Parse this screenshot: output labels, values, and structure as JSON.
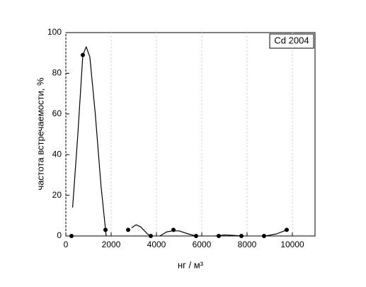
{
  "chart_data": {
    "type": "scatter",
    "annotation": "Cd 2004",
    "xlabel": "нг / м³",
    "ylabel": "частота встречаемости, %",
    "xlim": [
      0,
      11000
    ],
    "xticks": [
      0,
      2000,
      4000,
      6000,
      8000,
      10000
    ],
    "ylim": [
      0,
      100
    ],
    "yticks": [
      0,
      20,
      40,
      60,
      80,
      100
    ],
    "grid": true,
    "series": [
      {
        "kind": "points",
        "color": "#000000",
        "x": [
          250,
          750,
          1750,
          2750,
          3750,
          4750,
          5750,
          6750,
          7750,
          8750,
          9750
        ],
        "values": [
          0,
          89,
          3,
          3,
          0,
          3,
          0,
          0,
          0,
          0,
          3
        ]
      },
      {
        "kind": "curve",
        "color": "#000000",
        "x": [
          300,
          530,
          750,
          900,
          1060,
          1300,
          1550,
          1780,
          2300,
          2900,
          3100,
          3300,
          3600,
          3750,
          4000,
          4150,
          4450,
          4700,
          5000,
          5400,
          5750,
          6200,
          6600,
          7000,
          7400,
          7750,
          8300,
          8800,
          9300,
          9750
        ],
        "values": [
          14,
          50,
          89,
          93,
          88,
          60,
          25,
          0,
          null,
          4,
          5.5,
          4.5,
          1,
          0,
          null,
          0,
          2,
          2.5,
          2.5,
          1,
          0,
          null,
          0,
          0.5,
          0.3,
          0,
          null,
          0,
          1,
          3
        ]
      }
    ]
  }
}
